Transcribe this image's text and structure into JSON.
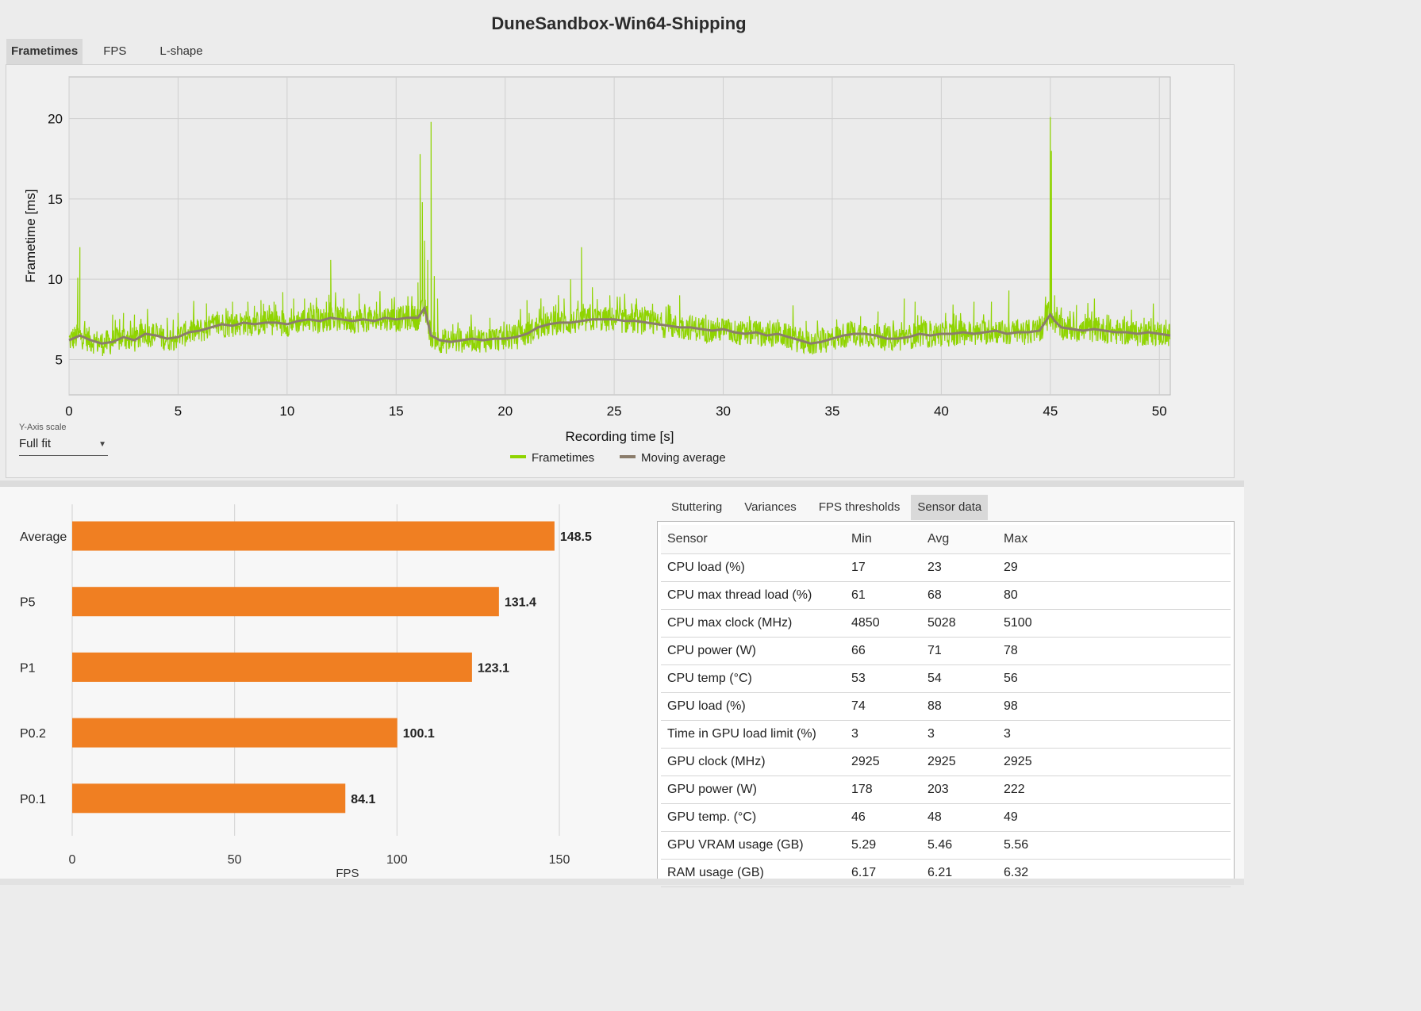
{
  "window": {
    "title": "DuneSandbox-Win64-Shipping"
  },
  "top_tabs": [
    "Frametimes",
    "FPS",
    "L-shape"
  ],
  "y_axis_scale": {
    "label": "Y-Axis scale",
    "value": "Full fit"
  },
  "bottom_tabs": [
    "Stuttering",
    "Variances",
    "FPS thresholds",
    "Sensor data"
  ],
  "colors": {
    "frametimes": "#8fd400",
    "moving_average": "#8b7d6b",
    "bar": "#f07f22"
  },
  "sensor_table": {
    "headers": [
      "Sensor",
      "Min",
      "Avg",
      "Max"
    ],
    "rows": [
      [
        "CPU load (%)",
        "17",
        "23",
        "29"
      ],
      [
        "CPU max thread load (%)",
        "61",
        "68",
        "80"
      ],
      [
        "CPU max clock (MHz)",
        "4850",
        "5028",
        "5100"
      ],
      [
        "CPU power (W)",
        "66",
        "71",
        "78"
      ],
      [
        "CPU temp (°C)",
        "53",
        "54",
        "56"
      ],
      [
        "GPU load (%)",
        "74",
        "88",
        "98"
      ],
      [
        "Time in GPU load limit (%)",
        "3",
        "3",
        "3"
      ],
      [
        "GPU clock (MHz)",
        "2925",
        "2925",
        "2925"
      ],
      [
        "GPU power (W)",
        "178",
        "203",
        "222"
      ],
      [
        "GPU temp. (°C)",
        "46",
        "48",
        "49"
      ],
      [
        "GPU VRAM usage (GB)",
        "5.29",
        "5.46",
        "5.56"
      ],
      [
        "RAM usage (GB)",
        "6.17",
        "6.21",
        "6.32"
      ]
    ]
  },
  "chart_data": [
    {
      "type": "line",
      "title": "",
      "xlabel": "Recording time [s]",
      "ylabel": "Frametime [ms]",
      "xlim": [
        0,
        50.5
      ],
      "ylim": [
        2.8,
        22.6
      ],
      "xticks": [
        0,
        5,
        10,
        15,
        20,
        25,
        30,
        35,
        40,
        45,
        50
      ],
      "yticks": [
        5,
        10,
        15,
        20
      ],
      "grid": true,
      "legend": "bottom-center",
      "series": [
        {
          "name": "Frametimes",
          "baseline": {
            "x": [
              0,
              0.5,
              1,
              1.5,
              2,
              2.5,
              3,
              3.5,
              4,
              4.5,
              5,
              5.5,
              6,
              6.5,
              7,
              7.5,
              8,
              8.5,
              9,
              9.5,
              10,
              10.5,
              11,
              11.5,
              12,
              12.5,
              13,
              13.5,
              14,
              14.5,
              15,
              15.5,
              16,
              16.3,
              16.6,
              17,
              17.5,
              18,
              18.5,
              19,
              19.5,
              20,
              20.5,
              21,
              21.5,
              22,
              22.5,
              23,
              23.5,
              24,
              24.5,
              25,
              25.5,
              26,
              26.5,
              27,
              27.5,
              28,
              28.5,
              29,
              29.5,
              30,
              30.5,
              31,
              31.5,
              32,
              32.5,
              33,
              33.5,
              34,
              34.5,
              35,
              35.5,
              36,
              36.5,
              37,
              37.5,
              38,
              38.5,
              39,
              39.5,
              40,
              40.5,
              41,
              41.5,
              42,
              42.5,
              43,
              43.5,
              44,
              44.5,
              45,
              45.2,
              45.5,
              46,
              46.5,
              47,
              47.5,
              48,
              48.5,
              49,
              49.5,
              50,
              50.5
            ],
            "y": [
              6.2,
              6.5,
              6.2,
              6.0,
              6.1,
              6.4,
              6.2,
              6.6,
              6.5,
              6.3,
              6.4,
              6.7,
              6.8,
              7.0,
              7.2,
              7.1,
              7.3,
              7.2,
              7.3,
              7.3,
              7.2,
              7.4,
              7.5,
              7.4,
              7.6,
              7.5,
              7.4,
              7.5,
              7.4,
              7.6,
              7.5,
              7.6,
              7.6,
              8.2,
              6.5,
              6.2,
              6.1,
              6.2,
              6.3,
              6.2,
              6.3,
              6.3,
              6.4,
              6.6,
              7.0,
              7.2,
              7.3,
              7.3,
              7.4,
              7.5,
              7.5,
              7.5,
              7.4,
              7.4,
              7.3,
              7.2,
              7.1,
              7.0,
              7.0,
              6.9,
              6.8,
              6.9,
              6.7,
              6.6,
              6.7,
              6.5,
              6.6,
              6.4,
              6.2,
              6.0,
              6.1,
              6.3,
              6.5,
              6.6,
              6.6,
              6.5,
              6.3,
              6.3,
              6.4,
              6.6,
              6.5,
              6.6,
              6.6,
              6.7,
              6.6,
              6.7,
              6.8,
              6.6,
              6.7,
              6.7,
              6.8,
              7.8,
              7.4,
              7.0,
              6.9,
              6.8,
              6.9,
              6.8,
              6.7,
              6.7,
              6.6,
              6.7,
              6.6,
              6.5
            ]
          },
          "noise_amplitude_ms": 0.8,
          "spikes": [
            {
              "x": 0.4,
              "y": 10.1
            },
            {
              "x": 0.5,
              "y": 12.0
            },
            {
              "x": 2.0,
              "y": 7.8
            },
            {
              "x": 2.5,
              "y": 7.9
            },
            {
              "x": 3.0,
              "y": 7.8
            },
            {
              "x": 4.5,
              "y": 7.6
            },
            {
              "x": 5.0,
              "y": 7.9
            },
            {
              "x": 6.3,
              "y": 8.5
            },
            {
              "x": 6.8,
              "y": 8.0
            },
            {
              "x": 7.5,
              "y": 8.6
            },
            {
              "x": 8.2,
              "y": 8.6
            },
            {
              "x": 8.8,
              "y": 8.7
            },
            {
              "x": 9.2,
              "y": 8.2
            },
            {
              "x": 9.4,
              "y": 8.6
            },
            {
              "x": 9.8,
              "y": 9.2
            },
            {
              "x": 10.3,
              "y": 8.8
            },
            {
              "x": 10.8,
              "y": 8.8
            },
            {
              "x": 11.2,
              "y": 8.4
            },
            {
              "x": 11.8,
              "y": 8.6
            },
            {
              "x": 12.0,
              "y": 11.2
            },
            {
              "x": 12.6,
              "y": 8.8
            },
            {
              "x": 13.3,
              "y": 9.1
            },
            {
              "x": 14.1,
              "y": 8.6
            },
            {
              "x": 14.8,
              "y": 8.8
            },
            {
              "x": 16.0,
              "y": 9.8
            },
            {
              "x": 16.1,
              "y": 17.8
            },
            {
              "x": 16.2,
              "y": 14.8
            },
            {
              "x": 16.3,
              "y": 12.4
            },
            {
              "x": 16.45,
              "y": 11.2
            },
            {
              "x": 16.6,
              "y": 19.8
            },
            {
              "x": 16.75,
              "y": 10.2
            },
            {
              "x": 16.9,
              "y": 8.8
            },
            {
              "x": 17.6,
              "y": 7.2
            },
            {
              "x": 19.3,
              "y": 7.6
            },
            {
              "x": 20.2,
              "y": 7.2
            },
            {
              "x": 21.0,
              "y": 8.7
            },
            {
              "x": 22.7,
              "y": 8.8
            },
            {
              "x": 23.0,
              "y": 10.0
            },
            {
              "x": 23.5,
              "y": 12.0
            },
            {
              "x": 24.0,
              "y": 9.5
            },
            {
              "x": 24.8,
              "y": 9.0
            },
            {
              "x": 25.8,
              "y": 8.5
            },
            {
              "x": 26.4,
              "y": 8.3
            },
            {
              "x": 27.5,
              "y": 8.4
            },
            {
              "x": 28.0,
              "y": 9.0
            },
            {
              "x": 29.2,
              "y": 7.8
            },
            {
              "x": 31.2,
              "y": 7.7
            },
            {
              "x": 32.5,
              "y": 7.5
            },
            {
              "x": 33.8,
              "y": 7.4
            },
            {
              "x": 35.2,
              "y": 7.5
            },
            {
              "x": 36.3,
              "y": 7.7
            },
            {
              "x": 37.1,
              "y": 8.0
            },
            {
              "x": 38.3,
              "y": 8.8
            },
            {
              "x": 38.8,
              "y": 8.6
            },
            {
              "x": 40.2,
              "y": 7.9
            },
            {
              "x": 41.5,
              "y": 8.6
            },
            {
              "x": 42.3,
              "y": 8.6
            },
            {
              "x": 43.1,
              "y": 9.3
            },
            {
              "x": 44.5,
              "y": 7.7
            },
            {
              "x": 44.9,
              "y": 8.2
            },
            {
              "x": 45.0,
              "y": 20.1
            },
            {
              "x": 45.05,
              "y": 18.0
            },
            {
              "x": 45.2,
              "y": 9.0
            },
            {
              "x": 46.2,
              "y": 8.4
            },
            {
              "x": 46.9,
              "y": 8.0
            },
            {
              "x": 47.6,
              "y": 7.8
            },
            {
              "x": 48.4,
              "y": 7.7
            },
            {
              "x": 49.3,
              "y": 7.6
            },
            {
              "x": 50.3,
              "y": 7.4
            }
          ]
        },
        {
          "name": "Moving average",
          "x": [
            0,
            0.5,
            1,
            1.5,
            2,
            2.5,
            3,
            3.5,
            4,
            4.5,
            5,
            5.5,
            6,
            6.5,
            7,
            7.5,
            8,
            8.5,
            9,
            9.5,
            10,
            10.5,
            11,
            11.5,
            12,
            12.5,
            13,
            13.5,
            14,
            14.5,
            15,
            15.5,
            16,
            16.3,
            16.6,
            17,
            17.5,
            18,
            18.5,
            19,
            19.5,
            20,
            20.5,
            21,
            21.5,
            22,
            22.5,
            23,
            23.5,
            24,
            24.5,
            25,
            25.5,
            26,
            26.5,
            27,
            27.5,
            28,
            28.5,
            29,
            29.5,
            30,
            30.5,
            31,
            31.5,
            32,
            32.5,
            33,
            33.5,
            34,
            34.5,
            35,
            35.5,
            36,
            36.5,
            37,
            37.5,
            38,
            38.5,
            39,
            39.5,
            40,
            40.5,
            41,
            41.5,
            42,
            42.5,
            43,
            43.5,
            44,
            44.5,
            45,
            45.2,
            45.5,
            46,
            46.5,
            47,
            47.5,
            48,
            48.5,
            49,
            49.5,
            50,
            50.5
          ],
          "y": [
            6.2,
            6.5,
            6.2,
            6.0,
            6.1,
            6.4,
            6.2,
            6.6,
            6.5,
            6.3,
            6.4,
            6.7,
            6.8,
            7.0,
            7.2,
            7.1,
            7.3,
            7.2,
            7.3,
            7.3,
            7.2,
            7.4,
            7.5,
            7.4,
            7.6,
            7.5,
            7.4,
            7.5,
            7.4,
            7.6,
            7.5,
            7.6,
            7.6,
            8.2,
            6.5,
            6.2,
            6.1,
            6.2,
            6.3,
            6.2,
            6.3,
            6.3,
            6.4,
            6.6,
            7.0,
            7.2,
            7.3,
            7.3,
            7.4,
            7.5,
            7.5,
            7.5,
            7.4,
            7.4,
            7.3,
            7.2,
            7.1,
            7.0,
            7.0,
            6.9,
            6.8,
            6.9,
            6.7,
            6.6,
            6.7,
            6.5,
            6.6,
            6.4,
            6.2,
            6.0,
            6.1,
            6.3,
            6.5,
            6.6,
            6.6,
            6.5,
            6.3,
            6.3,
            6.4,
            6.6,
            6.5,
            6.6,
            6.6,
            6.7,
            6.6,
            6.7,
            6.8,
            6.6,
            6.7,
            6.7,
            6.8,
            7.8,
            7.4,
            7.0,
            6.9,
            6.8,
            6.9,
            6.8,
            6.7,
            6.7,
            6.6,
            6.7,
            6.6,
            6.5
          ]
        }
      ]
    },
    {
      "type": "bar",
      "orientation": "horizontal",
      "categories": [
        "Average",
        "P5",
        "P1",
        "P0.2",
        "P0.1"
      ],
      "values": [
        148.5,
        131.4,
        123.1,
        100.1,
        84.1
      ],
      "value_labels": [
        "148.5",
        "131.4",
        "123.1",
        "100.1",
        "84.1"
      ],
      "xlabel": "FPS",
      "xlim": [
        0,
        150
      ],
      "xticks": [
        0,
        50,
        100,
        150
      ],
      "grid": true
    }
  ]
}
